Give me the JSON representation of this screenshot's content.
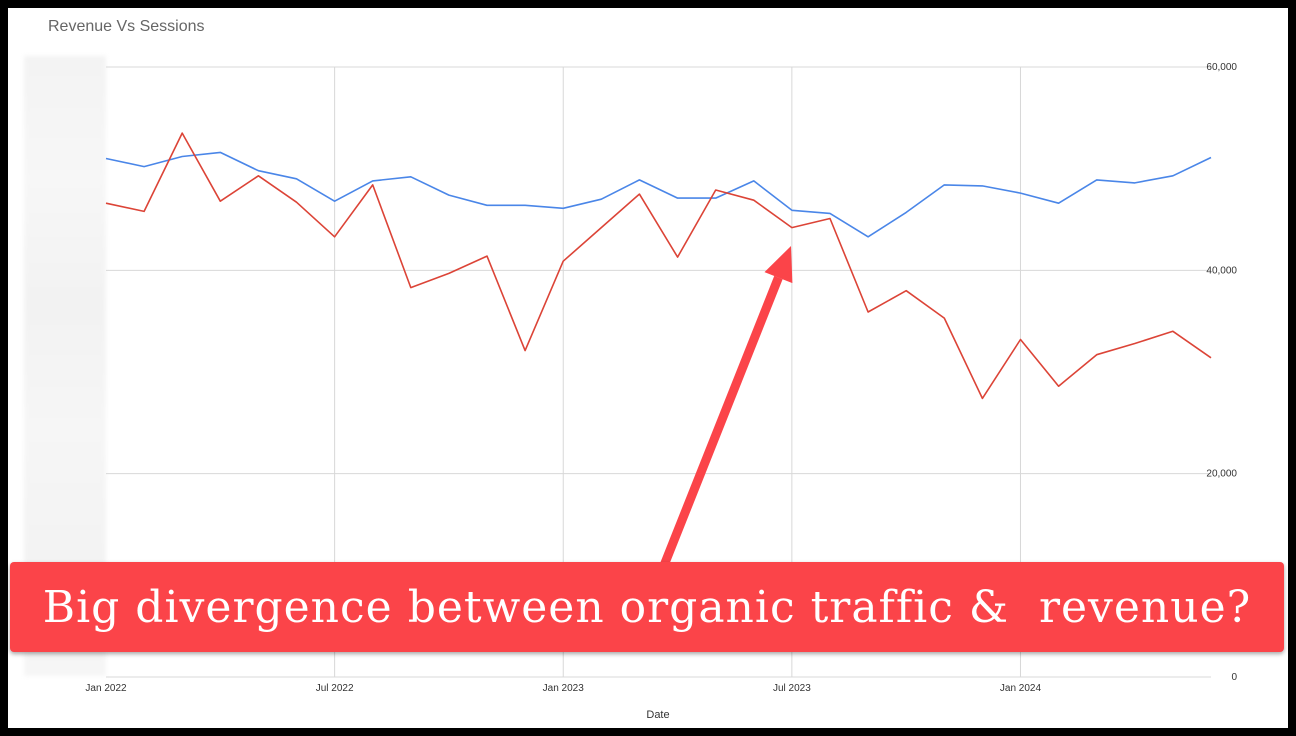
{
  "chart_data": {
    "type": "line",
    "title": "Revenue Vs Sessions",
    "xlabel": "Date",
    "ylabel": "",
    "ylim": [
      0,
      60000
    ],
    "y_ticks": [
      "0",
      "20,000",
      "40,000",
      "60,000"
    ],
    "x_tick_labels": [
      "Jan 2022",
      "Jul 2022",
      "Jan 2023",
      "Jul 2023",
      "Jan 2024"
    ],
    "x_tick_months": [
      0,
      6,
      12,
      18,
      24
    ],
    "grid": true,
    "x_months": [
      0,
      1,
      2,
      3,
      4,
      5,
      6,
      7,
      8,
      9,
      10,
      11,
      12,
      13,
      14,
      15,
      16,
      17,
      18,
      19,
      20,
      21,
      22,
      23,
      24,
      25,
      26,
      27,
      28,
      29
    ],
    "series": [
      {
        "color": "#4a86e8",
        "values": [
          51000,
          50200,
          51200,
          51600,
          49800,
          49000,
          46800,
          48800,
          49200,
          47400,
          46400,
          46400,
          46100,
          47000,
          48900,
          47100,
          47100,
          48800,
          45900,
          45600,
          43300,
          45700,
          48400,
          48300,
          47600,
          46600,
          48900,
          48600,
          49300,
          51100
        ]
      },
      {
        "color": "#dc4437",
        "values": [
          46600,
          45800,
          53500,
          46800,
          49300,
          46700,
          43300,
          48400,
          38300,
          39700,
          41400,
          32100,
          40900,
          44200,
          47500,
          41300,
          47900,
          46900,
          44200,
          45100,
          35900,
          38000,
          35300,
          27400,
          33200,
          28600,
          31700,
          32800,
          34000,
          31400
        ]
      }
    ]
  },
  "annotation": {
    "text": "Big divergence between organic traffic &  revenue?",
    "color": "#fb4449",
    "arrow_color": "#fb4449"
  }
}
